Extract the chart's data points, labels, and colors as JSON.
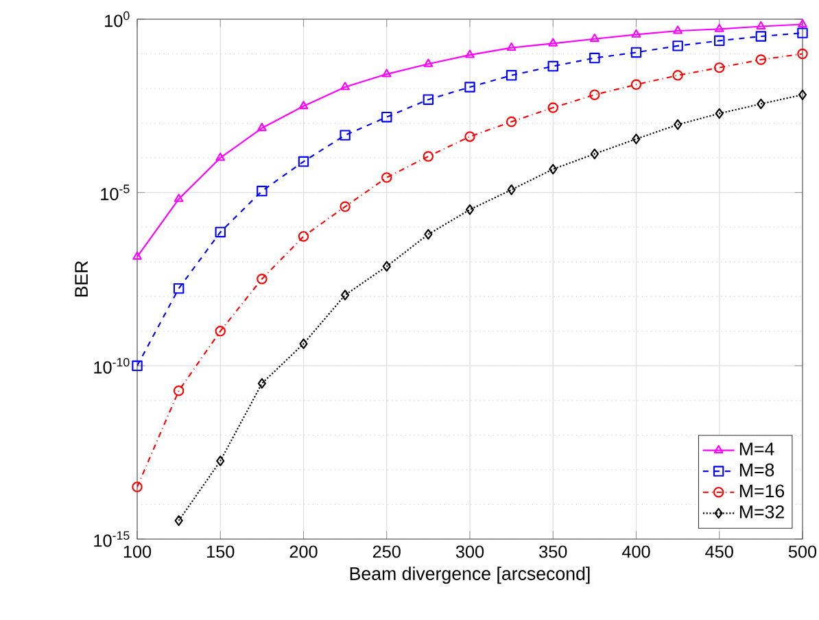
{
  "chart_data": {
    "type": "line",
    "xlabel": "Beam divergence [arcsecond]",
    "ylabel": "BER",
    "x": [
      100,
      125,
      150,
      175,
      200,
      225,
      250,
      275,
      300,
      325,
      350,
      375,
      400,
      425,
      450,
      475,
      500
    ],
    "series": [
      {
        "name": "M=4",
        "color": "#ff00ff",
        "marker": "triangle",
        "line_style": "solid",
        "values": [
          1.4e-07,
          6.5e-06,
          0.0001,
          0.00072,
          0.0031,
          0.011,
          0.026,
          0.051,
          0.093,
          0.15,
          0.2,
          0.27,
          0.36,
          0.46,
          0.52,
          0.62,
          0.71
        ]
      },
      {
        "name": "M=8",
        "color": "#0000ff",
        "marker": "square",
        "line_style": "dashed",
        "values": [
          1e-10,
          1.7e-08,
          7.2e-07,
          1.1e-05,
          7.8e-05,
          0.00045,
          0.0015,
          0.0048,
          0.011,
          0.024,
          0.044,
          0.076,
          0.11,
          0.17,
          0.24,
          0.32,
          0.4
        ]
      },
      {
        "name": "M=16",
        "color": "#ff0000",
        "marker": "circle",
        "line_style": "dashdot",
        "values": [
          3.2e-14,
          1.9e-11,
          1e-09,
          3.2e-08,
          5.4e-07,
          3.9e-06,
          2.7e-05,
          0.00011,
          0.00041,
          0.0011,
          0.0028,
          0.0066,
          0.013,
          0.024,
          0.04,
          0.068,
          0.1
        ]
      },
      {
        "name": "M=32",
        "color": "#000000",
        "marker": "diamond",
        "line_style": "dotted",
        "values": [
          null,
          3.4e-15,
          1.8e-13,
          3.1e-11,
          4.3e-10,
          1.1e-08,
          7.4e-08,
          6.2e-07,
          3.2e-06,
          1.2e-05,
          4.7e-05,
          0.00013,
          0.00035,
          0.00091,
          0.0019,
          0.0036,
          0.0066
        ]
      }
    ],
    "log": "y",
    "grid": true,
    "legend": "bottom right",
    "xlim": [
      100,
      500
    ],
    "xticks": [
      100,
      150,
      200,
      250,
      300,
      350,
      400,
      450,
      500
    ],
    "ylim": [
      1e-15,
      1
    ],
    "yticks": [
      {
        "value": 1e-15,
        "label": "10$^{-15}$"
      },
      {
        "value": 1e-10,
        "label": "10$^{-10}$"
      },
      {
        "value": 1e-05,
        "label": "10$^{-5}$"
      },
      {
        "value": 1,
        "label": "10$^{0}$"
      }
    ]
  }
}
